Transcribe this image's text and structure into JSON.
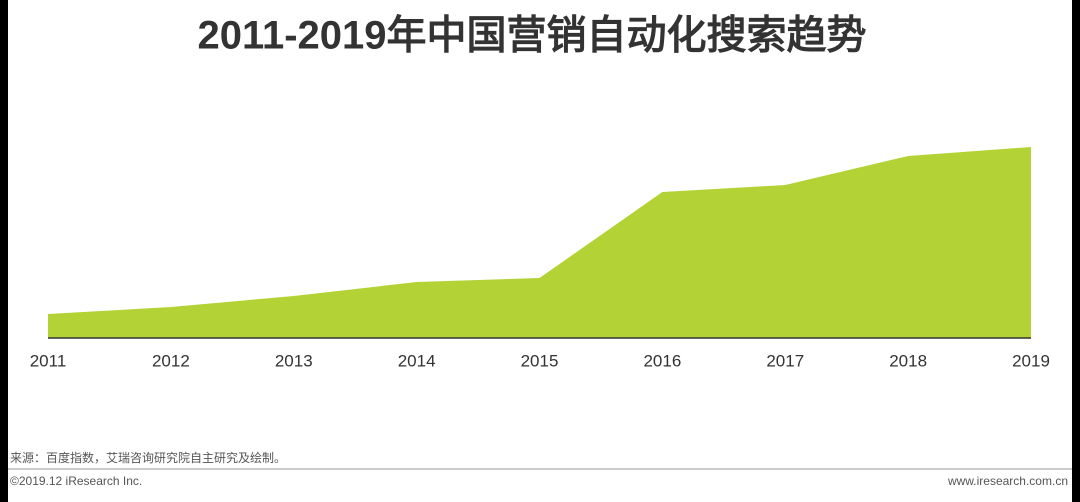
{
  "chart_data": {
    "type": "area",
    "title": "2011-2019年中国营销自动化搜索趋势",
    "categories": [
      "2011",
      "2012",
      "2013",
      "2014",
      "2015",
      "2016",
      "2017",
      "2018",
      "2019"
    ],
    "values": [
      24,
      31,
      42,
      56,
      60,
      146,
      153,
      182,
      191
    ],
    "color": "#b2d235",
    "ylim": [
      0,
      200
    ]
  },
  "source": "来源：百度指数，艾瑞咨询研究院自主研究及绘制。",
  "footer": {
    "copyright": "©2019.12 iResearch Inc.",
    "website": "www.iresearch.com.cn"
  }
}
